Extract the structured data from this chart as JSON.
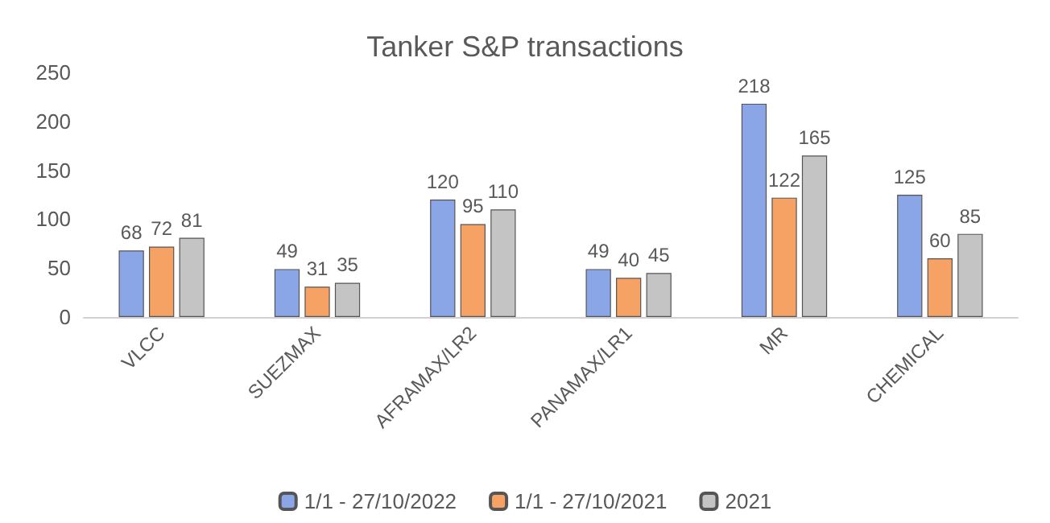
{
  "chart_data": {
    "type": "bar",
    "title": "Tanker S&P transactions",
    "categories": [
      "VLCC",
      "SUEZMAX",
      "AFRAMAX/LR2",
      "PANAMAX/LR1",
      "MR",
      "CHEMICAL"
    ],
    "series": [
      {
        "name": "1/1 - 27/10/2022",
        "color": "#8aa6e6",
        "values": [
          68,
          49,
          120,
          49,
          218,
          125
        ]
      },
      {
        "name": "1/1 - 27/10/2021",
        "color": "#f7a265",
        "values": [
          72,
          31,
          95,
          40,
          122,
          60
        ]
      },
      {
        "name": "2021",
        "color": "#c4c4c4",
        "values": [
          81,
          35,
          110,
          45,
          165,
          85
        ]
      }
    ],
    "ylim": [
      0,
      250
    ],
    "yticks": [
      0,
      50,
      100,
      150,
      200,
      250
    ],
    "grid": false,
    "data_labels": true,
    "legend": "bottom"
  }
}
